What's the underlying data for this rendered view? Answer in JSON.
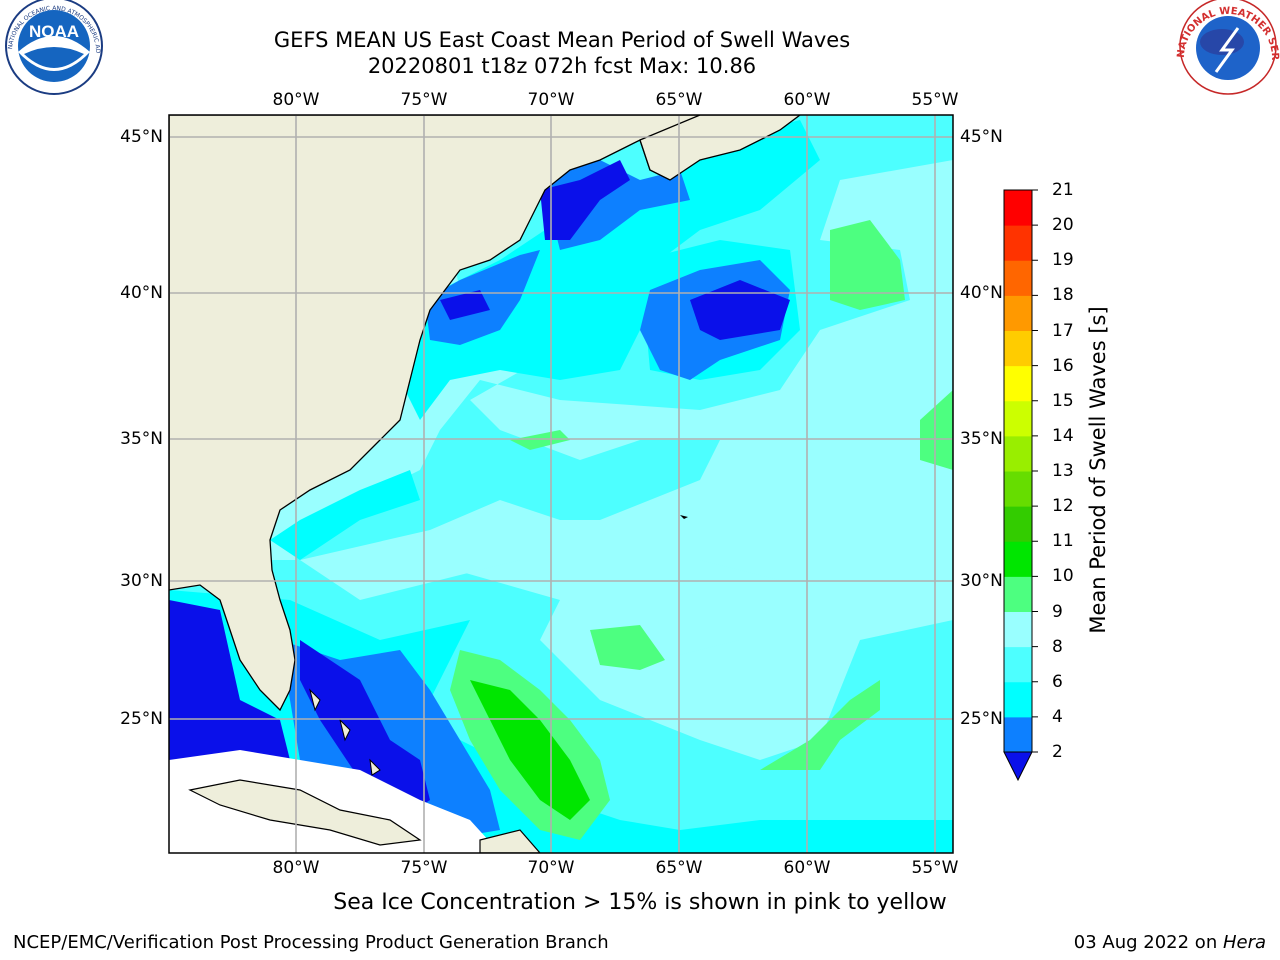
{
  "title": {
    "line1": "GEFS MEAN US East Coast Mean Period of Swell Waves",
    "line2": "20220801 t18z 072h fcst   Max: 10.86"
  },
  "map": {
    "lon_labels": [
      "80°W",
      "75°W",
      "70°W",
      "65°W",
      "60°W",
      "55°W"
    ],
    "lat_labels": [
      "45°N",
      "40°N",
      "35°N",
      "30°N",
      "25°N"
    ],
    "colors": {
      "land": "#eeeedb",
      "level_2_4": "#0a10ea",
      "level_4_6": "#0d80ff",
      "level_6_8": "#00ffff",
      "level_8_9": "#4dffff",
      "level_9_10": "#99ffff",
      "level_10_11": "#4dff80",
      "level_11_12": "#00e600",
      "missing": "#ffffff",
      "grid": "#b0b0b0"
    }
  },
  "colorbar": {
    "title": "Mean Period of Swell Waves [s]",
    "ticks": [
      "2",
      "4",
      "6",
      "8",
      "9",
      "10",
      "11",
      "12",
      "13",
      "14",
      "15",
      "16",
      "17",
      "18",
      "19",
      "20",
      "21"
    ],
    "colors": [
      "#0a10ea",
      "#0d80ff",
      "#00ffff",
      "#4dffff",
      "#99ffff",
      "#4dff80",
      "#00e600",
      "#33cc00",
      "#66dd00",
      "#99ee00",
      "#ccff00",
      "#ffff00",
      "#ffcc00",
      "#ff9900",
      "#ff6600",
      "#ff3300",
      "#ff0000"
    ]
  },
  "caption": "Sea Ice Concentration > 15% is shown in pink to yellow",
  "footer": {
    "left": "NCEP/EMC/Verification Post Processing Product Generation Branch",
    "right_date": "03 Aug 2022 on ",
    "right_host": "Hera"
  },
  "logos": {
    "noaa": "NOAA",
    "nws": "NATIONAL WEATHER SERVICE"
  }
}
